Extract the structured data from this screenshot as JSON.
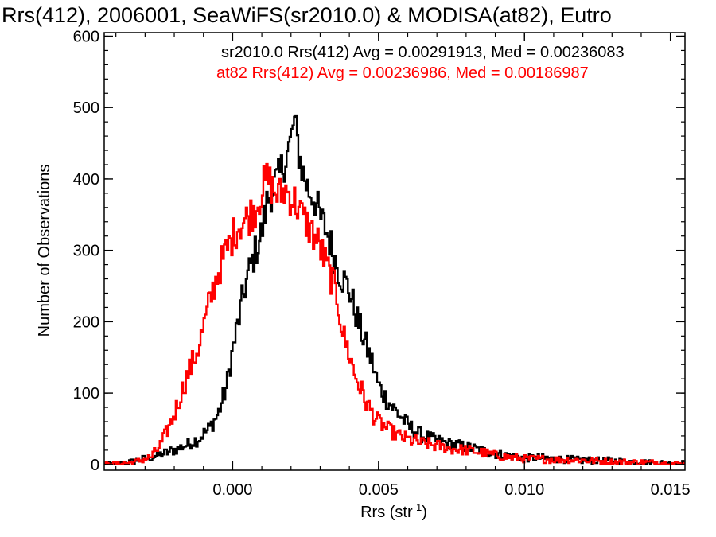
{
  "chart_data": {
    "type": "histogram-step",
    "title": "Rrs(412), 2006001, SeaWiFS(sr2010.0) & MODISA(at82), Eutro",
    "xlabel": {
      "main": "Rrs (str",
      "sup": "-1",
      "close": ")"
    },
    "ylabel": "Number of Observations",
    "xlim": [
      -0.0044,
      0.0155
    ],
    "ylim": [
      -8,
      605
    ],
    "x_ticks": [
      {
        "value": 0.0,
        "label": "0.000"
      },
      {
        "value": 0.005,
        "label": "0.005"
      },
      {
        "value": 0.01,
        "label": "0.010"
      },
      {
        "value": 0.015,
        "label": "0.015"
      }
    ],
    "y_ticks": [
      {
        "value": 0,
        "label": "0"
      },
      {
        "value": 100,
        "label": "100"
      },
      {
        "value": 200,
        "label": "200"
      },
      {
        "value": 300,
        "label": "300"
      },
      {
        "value": 400,
        "label": "400"
      },
      {
        "value": 500,
        "label": "500"
      },
      {
        "value": 600,
        "label": "600"
      }
    ],
    "x_minor_step": 0.001,
    "y_minor_step": 20,
    "legend_position": "top-right",
    "series": [
      {
        "id": "sr2010",
        "legend": "sr2010.0 Rrs(412) Avg = 0.00291913, Med = 0.00236083",
        "color": "#000000",
        "points": [
          [
            -0.0044,
            0
          ],
          [
            -0.004,
            1
          ],
          [
            -0.0036,
            3
          ],
          [
            -0.0032,
            6
          ],
          [
            -0.0028,
            10
          ],
          [
            -0.0024,
            15
          ],
          [
            -0.002,
            20
          ],
          [
            -0.0016,
            27
          ],
          [
            -0.0012,
            35
          ],
          [
            -0.0008,
            50
          ],
          [
            -0.0005,
            70
          ],
          [
            -0.0002,
            110
          ],
          [
            0.0,
            160
          ],
          [
            0.0002,
            200
          ],
          [
            0.0004,
            245
          ],
          [
            0.0006,
            275
          ],
          [
            0.0008,
            300
          ],
          [
            0.001,
            325
          ],
          [
            0.0012,
            370
          ],
          [
            0.0014,
            390
          ],
          [
            0.0016,
            400
          ],
          [
            0.0018,
            430
          ],
          [
            0.002,
            450
          ],
          [
            0.0021,
            485
          ],
          [
            0.0022,
            455
          ],
          [
            0.0024,
            410
          ],
          [
            0.0026,
            385
          ],
          [
            0.0028,
            375
          ],
          [
            0.003,
            345
          ],
          [
            0.0032,
            330
          ],
          [
            0.0035,
            290
          ],
          [
            0.0037,
            265
          ],
          [
            0.004,
            245
          ],
          [
            0.0043,
            200
          ],
          [
            0.0045,
            175
          ],
          [
            0.0048,
            140
          ],
          [
            0.005,
            110
          ],
          [
            0.0053,
            90
          ],
          [
            0.0056,
            75
          ],
          [
            0.006,
            55
          ],
          [
            0.0065,
            40
          ],
          [
            0.007,
            33
          ],
          [
            0.0075,
            28
          ],
          [
            0.008,
            25
          ],
          [
            0.0085,
            20
          ],
          [
            0.009,
            15
          ],
          [
            0.0095,
            12
          ],
          [
            0.01,
            10
          ],
          [
            0.011,
            8
          ],
          [
            0.012,
            6
          ],
          [
            0.013,
            5
          ],
          [
            0.014,
            3
          ],
          [
            0.015,
            2
          ],
          [
            0.0155,
            2
          ]
        ]
      },
      {
        "id": "at82",
        "legend": "at82 Rrs(412) Avg = 0.00236986, Med = 0.00186987",
        "color": "#ff0000",
        "points": [
          [
            -0.0044,
            0
          ],
          [
            -0.004,
            1
          ],
          [
            -0.0036,
            2
          ],
          [
            -0.0032,
            5
          ],
          [
            -0.0028,
            10
          ],
          [
            -0.0025,
            25
          ],
          [
            -0.0022,
            50
          ],
          [
            -0.002,
            70
          ],
          [
            -0.0018,
            95
          ],
          [
            -0.0016,
            120
          ],
          [
            -0.0014,
            140
          ],
          [
            -0.0012,
            160
          ],
          [
            -0.001,
            190
          ],
          [
            -0.0008,
            225
          ],
          [
            -0.0006,
            255
          ],
          [
            -0.0004,
            280
          ],
          [
            -0.0002,
            300
          ],
          [
            0.0,
            320
          ],
          [
            0.0002,
            335
          ],
          [
            0.0004,
            340
          ],
          [
            0.0006,
            350
          ],
          [
            0.0008,
            360
          ],
          [
            0.001,
            385
          ],
          [
            0.0012,
            400
          ],
          [
            0.0014,
            385
          ],
          [
            0.0016,
            375
          ],
          [
            0.0018,
            385
          ],
          [
            0.002,
            375
          ],
          [
            0.0022,
            365
          ],
          [
            0.0024,
            345
          ],
          [
            0.0026,
            335
          ],
          [
            0.0028,
            320
          ],
          [
            0.003,
            305
          ],
          [
            0.0032,
            280
          ],
          [
            0.0034,
            260
          ],
          [
            0.0036,
            230
          ],
          [
            0.0038,
            180
          ],
          [
            0.004,
            155
          ],
          [
            0.0042,
            125
          ],
          [
            0.0044,
            105
          ],
          [
            0.0046,
            85
          ],
          [
            0.0048,
            70
          ],
          [
            0.005,
            60
          ],
          [
            0.0053,
            50
          ],
          [
            0.0056,
            42
          ],
          [
            0.006,
            35
          ],
          [
            0.0065,
            30
          ],
          [
            0.007,
            26
          ],
          [
            0.0075,
            22
          ],
          [
            0.008,
            20
          ],
          [
            0.0085,
            17
          ],
          [
            0.009,
            13
          ],
          [
            0.0095,
            10
          ],
          [
            0.01,
            8
          ],
          [
            0.011,
            7
          ],
          [
            0.012,
            6
          ],
          [
            0.013,
            4
          ],
          [
            0.014,
            3
          ],
          [
            0.015,
            2
          ],
          [
            0.0155,
            1
          ]
        ]
      }
    ]
  }
}
